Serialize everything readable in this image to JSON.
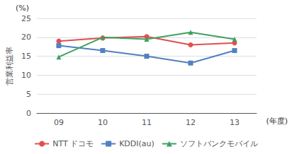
{
  "chart_data": {
    "type": "line",
    "categories": [
      "09",
      "10",
      "11",
      "12",
      "13"
    ],
    "series": [
      {
        "name": "NTT ドコモ",
        "color": "#e05050",
        "marker": "circle",
        "values": [
          19.0,
          19.8,
          20.2,
          18.0,
          18.5
        ]
      },
      {
        "name": "KDDI(au)",
        "color": "#5080c0",
        "marker": "square",
        "values": [
          17.8,
          16.5,
          15.0,
          13.2,
          16.5
        ]
      },
      {
        "name": "ソフトバンクモバイル",
        "color": "#40a060",
        "marker": "triangle",
        "values": [
          14.8,
          20.0,
          19.5,
          21.3,
          19.5
        ]
      }
    ],
    "ylabel": "営業利益率",
    "annotations": [
      "(%)",
      "(年度)"
    ],
    "ylim": [
      0,
      25
    ],
    "yticks": [
      0,
      5,
      10,
      15,
      20,
      25
    ],
    "grid": true,
    "legend": "bottom"
  }
}
